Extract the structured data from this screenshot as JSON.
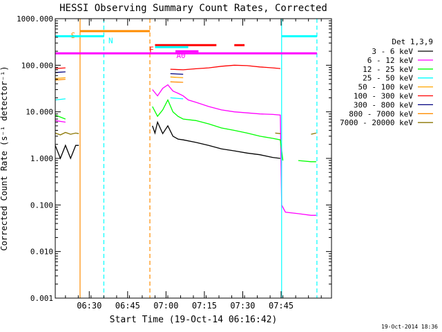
{
  "chart_data": {
    "type": "line",
    "title": "HESSI Observing Summary Count Rates, Corrected",
    "xlabel": "Start Time (19-Oct-14 06:16:42)",
    "ylabel": "Corrected Count Rate (s⁻¹ detector⁻¹)",
    "yscale": "log",
    "ylim": [
      0.001,
      1000
    ],
    "xlim_minutes": [
      0,
      108
    ],
    "x_ticks": [
      "06:30",
      "06:45",
      "07:00",
      "07:15",
      "07:30",
      "07:45"
    ],
    "y_ticks": [
      "1000.000",
      "100.000",
      "10.000",
      "1.000",
      "0.100",
      "0.010",
      "0.001"
    ],
    "legend_title": "Det 1,3,9",
    "legend_placement": "right",
    "series": [
      {
        "name": "3 - 6 keV",
        "color": "#000000",
        "x": [
          0,
          2,
          4,
          6,
          8,
          9.2,
          38,
          39,
          40,
          42,
          44,
          46,
          48,
          50,
          55,
          60,
          65,
          70,
          75,
          80,
          85,
          88
        ],
        "y": [
          1.9,
          1.0,
          1.9,
          1.0,
          1.9,
          1.9,
          5.0,
          3.5,
          6.0,
          3.4,
          5.0,
          3.0,
          2.6,
          2.5,
          2.2,
          1.9,
          1.6,
          1.45,
          1.3,
          1.2,
          1.05,
          1.0
        ]
      },
      {
        "name": "6 - 12 keV",
        "color": "#ff00ff",
        "x": [
          0,
          4,
          9.2,
          38,
          40,
          42,
          44,
          46,
          48,
          50,
          52,
          55,
          60,
          65,
          70,
          75,
          80,
          85,
          88,
          88.5,
          90,
          95,
          100,
          102
        ],
        "y": [
          6.5,
          6.0,
          6.5,
          30,
          22,
          32,
          38,
          28,
          25,
          22,
          18,
          16,
          13,
          11,
          10,
          9.5,
          9.0,
          8.8,
          8.5,
          0.1,
          0.07,
          0.065,
          0.06,
          0.06
        ]
      },
      {
        "name": "12 - 25 keV",
        "color": "#00ff00",
        "x": [
          0,
          4,
          9.2,
          38,
          40,
          42,
          44,
          46,
          48,
          50,
          55,
          60,
          65,
          70,
          75,
          80,
          85,
          88,
          89,
          95,
          100,
          102
        ],
        "y": [
          8.5,
          7.0,
          8.0,
          13,
          8,
          11,
          18,
          10,
          8,
          7,
          6.5,
          5.5,
          4.5,
          4.0,
          3.5,
          3.0,
          2.7,
          2.5,
          0.9,
          0.9,
          0.85,
          0.85
        ]
      },
      {
        "name": "25 - 50 keV",
        "color": "#00ffff",
        "x": [
          0,
          4,
          9.2,
          38,
          45,
          50,
          60,
          70,
          80,
          88,
          95,
          102
        ],
        "y": [
          18,
          19,
          20,
          21,
          20,
          19,
          19,
          20,
          19,
          18,
          18.5,
          18
        ]
      },
      {
        "name": "50 - 100 keV",
        "color": "#ffa500",
        "x": [
          0,
          4,
          9.2,
          38,
          45,
          50,
          60,
          70,
          80,
          88,
          102
        ],
        "y": [
          52,
          54,
          55,
          58,
          56,
          54,
          55,
          57,
          54,
          52,
          50
        ]
      },
      {
        "name": "100 - 300 keV",
        "color": "#ff0000",
        "x": [
          0,
          4,
          9.2,
          38,
          45,
          50,
          55,
          60,
          65,
          70,
          75,
          80,
          85,
          88,
          95,
          102
        ],
        "y": [
          85,
          88,
          90,
          90,
          82,
          80,
          84,
          88,
          95,
          100,
          98,
          92,
          88,
          85,
          80,
          78
        ]
      },
      {
        "name": "300 - 800 keV",
        "color": "#000080",
        "x": [
          0,
          4,
          9.2,
          38,
          45,
          50,
          60,
          70,
          80,
          88,
          95,
          102
        ],
        "y": [
          70,
          72,
          74,
          72,
          66,
          64,
          65,
          66,
          63,
          60,
          58,
          56
        ]
      },
      {
        "name": "800 - 7000 keV",
        "color": "#ff8c00",
        "x": [
          0,
          4,
          9.2,
          38,
          45,
          50,
          60,
          70,
          80,
          88,
          102
        ],
        "y": [
          48,
          50,
          52,
          48,
          44,
          43,
          44,
          45,
          43,
          42,
          41
        ]
      },
      {
        "name": "7000 - 20000 keV",
        "color": "#8b7500",
        "x": [
          0,
          2,
          4,
          6,
          8,
          9.2,
          38,
          44,
          50,
          56,
          62,
          68,
          74,
          80,
          86,
          88,
          94,
          100,
          102
        ],
        "y": [
          3.5,
          3.2,
          3.6,
          3.3,
          3.5,
          3.4,
          3.5,
          3.4,
          3.6,
          3.3,
          3.5,
          3.4,
          3.5,
          3.3,
          3.5,
          3.4,
          3.5,
          3.3,
          3.5
        ]
      }
    ],
    "vertical_markers": [
      {
        "x": 9.7,
        "color": "#ff8c00",
        "style": "solid"
      },
      {
        "x": 19,
        "color": "#00ffff",
        "style": "dashed"
      },
      {
        "x": 37,
        "color": "#ff8c00",
        "style": "dashed"
      },
      {
        "x": 88.5,
        "color": "#00ffff",
        "style": "solid"
      },
      {
        "x": 102.3,
        "color": "#00ffff",
        "style": "dashed"
      }
    ],
    "flag_bars": [
      {
        "label": "S",
        "color": "#ff8c00",
        "x0": 9.7,
        "x1": 37,
        "y": 540
      },
      {
        "label": "N",
        "color": "#00ffff",
        "x0": 0,
        "x1": 19,
        "y": 420
      },
      {
        "label": "",
        "color": "#00ffff",
        "x0": 88.5,
        "x1": 102.3,
        "y": 420
      },
      {
        "label": "F",
        "color": "#ff0000",
        "x0": 39,
        "x1": 63,
        "y": 270
      },
      {
        "label": "",
        "color": "#ff0000",
        "x0": 70,
        "x1": 74,
        "y": 270
      },
      {
        "label": "",
        "color": "#00ffff",
        "x0": 39,
        "x1": 52,
        "y": 245
      },
      {
        "label": "",
        "color": "#ff00ff",
        "x0": 0,
        "x1": 102.3,
        "y": 180
      },
      {
        "label": "A0",
        "color": "#ff00ff",
        "x0": 47,
        "x1": 56,
        "y": 200
      }
    ],
    "annotation": "19-Oct-2014 18:36"
  }
}
